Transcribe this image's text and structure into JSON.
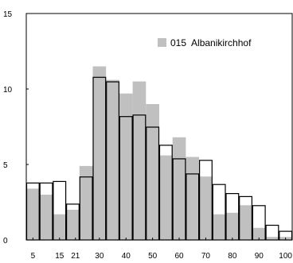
{
  "chart_data": {
    "type": "bar",
    "overlay": true,
    "ylim": [
      0,
      15
    ],
    "xlim": [
      0,
      100
    ],
    "bin_width": 5,
    "y_ticks": [
      0,
      5,
      10,
      15
    ],
    "x_ticks": [
      5,
      15,
      21,
      30,
      40,
      50,
      60,
      70,
      80,
      90,
      100
    ],
    "grid": false,
    "legend_position": "top-right",
    "colors": {
      "filled": "#c0c0c0",
      "outline": "#000000"
    },
    "series": [
      {
        "name": "015  Albanikirchhof",
        "style": "filled",
        "x": [
          0,
          5,
          10,
          15,
          20,
          25,
          30,
          35,
          40,
          45,
          50,
          55,
          60,
          65,
          70,
          75,
          80,
          85,
          90,
          95
        ],
        "values": [
          3.4,
          3.0,
          1.7,
          2.0,
          4.9,
          11.5,
          10.6,
          9.7,
          10.5,
          9.0,
          5.6,
          6.8,
          5.5,
          4.2,
          1.7,
          1.8,
          2.3,
          0.8,
          0.2,
          0.2
        ]
      },
      {
        "style": "outline",
        "x": [
          0,
          5,
          10,
          15,
          20,
          25,
          30,
          35,
          40,
          45,
          50,
          55,
          60,
          65,
          70,
          75,
          80,
          85,
          90,
          95
        ],
        "values": [
          3.8,
          3.8,
          3.9,
          2.4,
          4.2,
          10.8,
          10.5,
          8.2,
          8.3,
          7.5,
          6.3,
          5.4,
          4.4,
          5.3,
          3.7,
          3.1,
          2.9,
          2.3,
          1.0,
          0.6
        ]
      }
    ]
  }
}
